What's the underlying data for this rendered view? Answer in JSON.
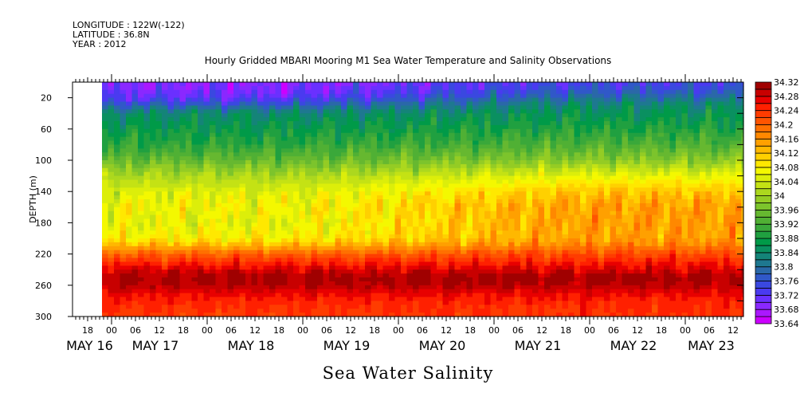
{
  "header": {
    "longitude": "LONGITUDE : 122W(-122)",
    "latitude": "LATITUDE : 36.8N",
    "year": "YEAR : 2012"
  },
  "chart_data": {
    "type": "heatmap",
    "title": "Hourly Gridded MBARI Mooring M1 Sea Water Temperature and Salinity Observations",
    "xlabel": "Sea Water Salinity",
    "ylabel": "DEPTH (m)",
    "xlim_hours_from_may16": [
      14.2,
      182.6
    ],
    "data_start_hours": 21.6,
    "ylim": [
      0,
      300
    ],
    "y_reversed": true,
    "y_ticks": [
      20,
      60,
      100,
      140,
      180,
      220,
      260,
      300
    ],
    "x_tick_labels": [
      {
        "h": 18,
        "label": "18"
      },
      {
        "h": 24,
        "label": "00"
      },
      {
        "h": 30,
        "label": "06"
      },
      {
        "h": 36,
        "label": "12"
      },
      {
        "h": 42,
        "label": "18"
      },
      {
        "h": 48,
        "label": "00"
      },
      {
        "h": 54,
        "label": "06"
      },
      {
        "h": 60,
        "label": "12"
      },
      {
        "h": 66,
        "label": "18"
      },
      {
        "h": 72,
        "label": "00"
      },
      {
        "h": 78,
        "label": "06"
      },
      {
        "h": 84,
        "label": "12"
      },
      {
        "h": 90,
        "label": "18"
      },
      {
        "h": 96,
        "label": "00"
      },
      {
        "h": 102,
        "label": "06"
      },
      {
        "h": 108,
        "label": "12"
      },
      {
        "h": 114,
        "label": "18"
      },
      {
        "h": 120,
        "label": "00"
      },
      {
        "h": 126,
        "label": "06"
      },
      {
        "h": 132,
        "label": "12"
      },
      {
        "h": 138,
        "label": "18"
      },
      {
        "h": 144,
        "label": "00"
      },
      {
        "h": 150,
        "label": "06"
      },
      {
        "h": 156,
        "label": "12"
      },
      {
        "h": 162,
        "label": "18"
      },
      {
        "h": 168,
        "label": "00"
      },
      {
        "h": 174,
        "label": "06"
      },
      {
        "h": 180,
        "label": "12"
      }
    ],
    "day_labels": [
      {
        "h": 18.5,
        "label": "MAY 16"
      },
      {
        "h": 35,
        "label": "MAY 17"
      },
      {
        "h": 59,
        "label": "MAY 18"
      },
      {
        "h": 83,
        "label": "MAY 19"
      },
      {
        "h": 107,
        "label": "MAY 20"
      },
      {
        "h": 131,
        "label": "MAY 21"
      },
      {
        "h": 155,
        "label": "MAY 22"
      },
      {
        "h": 174.5,
        "label": "MAY 23"
      }
    ],
    "colorbar": {
      "min": 33.64,
      "max": 34.32,
      "step": 0.02,
      "labels": [
        "34.32",
        "34.28",
        "34.24",
        "34.2",
        "34.16",
        "34.12",
        "34.08",
        "34.04",
        "34",
        "33.96",
        "33.92",
        "33.88",
        "33.84",
        "33.8",
        "33.76",
        "33.72",
        "33.68",
        "33.64"
      ],
      "colors": [
        "#cc00ff",
        "#aa18ff",
        "#8a28ff",
        "#6a30ff",
        "#4a3af0",
        "#3a48e0",
        "#3058c8",
        "#2a68a8",
        "#1e7890",
        "#148478",
        "#0a9060",
        "#009a48",
        "#20a040",
        "#3aa83a",
        "#50b034",
        "#66b830",
        "#7cc42c",
        "#94cc24",
        "#acd81e",
        "#c4e214",
        "#dcee0a",
        "#f4f800",
        "#ffe800",
        "#ffd000",
        "#ffb800",
        "#ffa000",
        "#ff8800",
        "#ff7000",
        "#ff5400",
        "#ff3c00",
        "#ff2000",
        "#e80000",
        "#c80000",
        "#a00000"
      ]
    },
    "profiles": {
      "depths": [
        0,
        10,
        20,
        30,
        40,
        60,
        80,
        100,
        120,
        140,
        160,
        180,
        200,
        210,
        220,
        230,
        240,
        250,
        260,
        270,
        280,
        290,
        300
      ],
      "early": [
        33.69,
        33.7,
        33.72,
        33.78,
        33.84,
        33.87,
        33.9,
        33.95,
        34.01,
        34.05,
        34.07,
        34.06,
        34.08,
        34.14,
        34.2,
        34.24,
        34.28,
        34.31,
        34.3,
        34.27,
        34.25,
        34.24,
        34.23
      ],
      "late": [
        33.74,
        33.76,
        33.8,
        33.84,
        33.86,
        33.89,
        33.93,
        33.98,
        34.06,
        34.12,
        34.15,
        34.15,
        34.15,
        34.18,
        34.22,
        34.25,
        34.28,
        34.31,
        34.3,
        34.27,
        34.25,
        34.24,
        34.24
      ]
    }
  }
}
